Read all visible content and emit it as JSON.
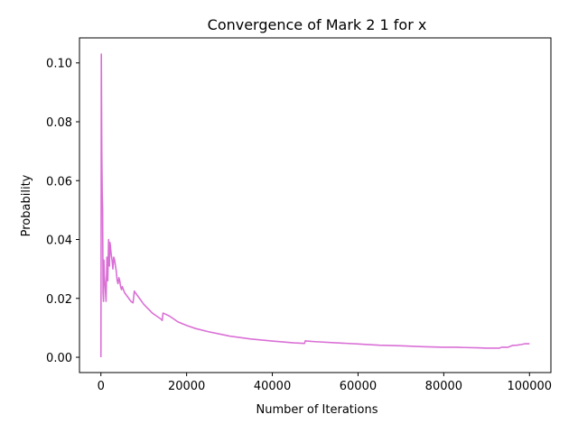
{
  "chart_data": {
    "type": "line",
    "title": "Convergence of Mark 2 1 for x",
    "xlabel": "Number of Iterations",
    "ylabel": "Probability",
    "xlim": [
      -5000,
      105000
    ],
    "ylim": [
      -0.0052,
      0.1085
    ],
    "xticks": [
      0,
      20000,
      40000,
      60000,
      80000,
      100000
    ],
    "xtick_labels": [
      "0",
      "20000",
      "40000",
      "60000",
      "80000",
      "100000"
    ],
    "yticks": [
      0.0,
      0.02,
      0.04,
      0.06,
      0.08,
      0.1
    ],
    "ytick_labels": [
      "0.00",
      "0.02",
      "0.04",
      "0.06",
      "0.08",
      "0.10"
    ],
    "grid": false,
    "series": [
      {
        "color": "#da70d6",
        "x": [
          0,
          50,
          100,
          200,
          300,
          400,
          500,
          600,
          700,
          800,
          1000,
          1200,
          1400,
          1500,
          1600,
          1800,
          2000,
          2100,
          2200,
          2400,
          2600,
          2800,
          3000,
          3200,
          3400,
          3600,
          3800,
          4000,
          4200,
          4400,
          4600,
          4800,
          5000,
          5500,
          6000,
          6500,
          7000,
          7500,
          7800,
          8000,
          9000,
          10000,
          11000,
          12000,
          13000,
          14000,
          14300,
          14500,
          15000,
          16000,
          17000,
          18000,
          20000,
          22000,
          25000,
          28000,
          30000,
          35000,
          40000,
          45000,
          47500,
          47700,
          48000,
          50000,
          55000,
          60000,
          65000,
          70000,
          75000,
          80000,
          83000,
          85000,
          88000,
          90000,
          93000,
          93500,
          95000,
          95500,
          96000,
          97000,
          98000,
          99000,
          100000
        ],
        "y": [
          0.0,
          0.04,
          0.103,
          0.07,
          0.056,
          0.05,
          0.022,
          0.019,
          0.033,
          0.028,
          0.024,
          0.019,
          0.034,
          0.032,
          0.026,
          0.04,
          0.031,
          0.039,
          0.038,
          0.035,
          0.033,
          0.03,
          0.034,
          0.033,
          0.031,
          0.029,
          0.026,
          0.025,
          0.027,
          0.026,
          0.024,
          0.023,
          0.024,
          0.022,
          0.021,
          0.02,
          0.019,
          0.0185,
          0.0225,
          0.022,
          0.02,
          0.018,
          0.0165,
          0.015,
          0.014,
          0.013,
          0.0125,
          0.015,
          0.0147,
          0.014,
          0.013,
          0.012,
          0.0108,
          0.0098,
          0.0087,
          0.0078,
          0.0072,
          0.0062,
          0.0055,
          0.0049,
          0.0047,
          0.0056,
          0.0055,
          0.0053,
          0.0049,
          0.0045,
          0.0041,
          0.0039,
          0.0036,
          0.0034,
          0.0034,
          0.0033,
          0.0032,
          0.0031,
          0.0031,
          0.0034,
          0.0034,
          0.0037,
          0.004,
          0.0041,
          0.0043,
          0.0046,
          0.0046
        ]
      }
    ]
  }
}
